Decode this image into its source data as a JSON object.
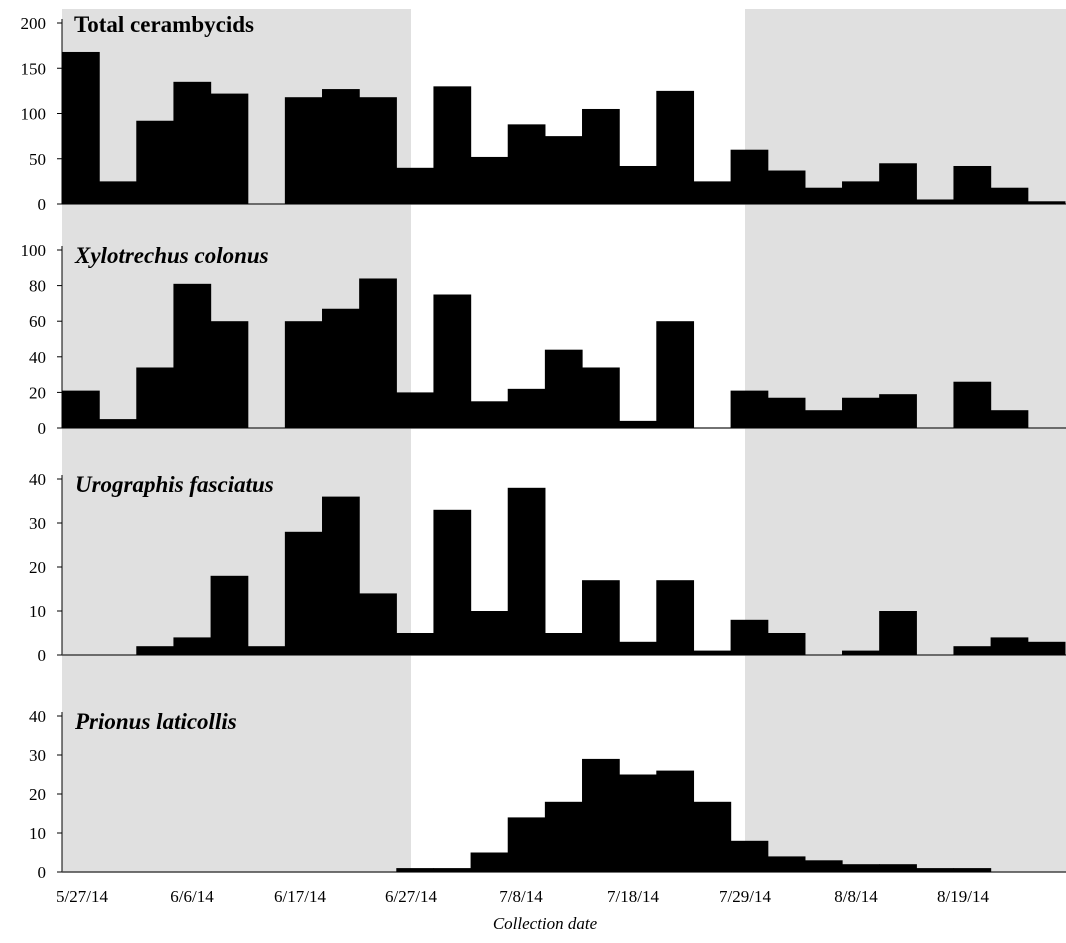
{
  "chart_data": {
    "type": "bar",
    "xlabel": "Collection date",
    "x_tick_labels": [
      "5/27/14",
      "6/6/14",
      "6/17/14",
      "6/27/14",
      "7/8/14",
      "7/18/14",
      "7/29/14",
      "8/8/14",
      "8/19/14"
    ],
    "shaded_periods": [
      [
        "5/27/14",
        "6/27/14"
      ],
      [
        "7/29/14",
        "end"
      ]
    ],
    "colors": {
      "bars": "#000000",
      "shading": "#e0e0e0"
    },
    "n_collections": 27,
    "panels": [
      {
        "title": "Total cerambycids",
        "ylim": [
          0,
          200
        ],
        "yticks": [
          0,
          50,
          100,
          150,
          200
        ],
        "values": [
          168,
          25,
          92,
          135,
          122,
          0,
          118,
          127,
          118,
          40,
          130,
          52,
          88,
          75,
          105,
          42,
          125,
          25,
          60,
          37,
          18,
          25,
          45,
          5,
          42,
          18,
          3
        ]
      },
      {
        "title": "Xylotrechus colonus",
        "ylim": [
          0,
          100
        ],
        "yticks": [
          0,
          20,
          40,
          60,
          80,
          100
        ],
        "values": [
          21,
          5,
          34,
          81,
          60,
          0,
          60,
          67,
          84,
          20,
          75,
          15,
          22,
          44,
          34,
          4,
          60,
          0,
          21,
          17,
          10,
          17,
          19,
          0,
          26,
          10,
          0
        ]
      },
      {
        "title": "Urographis fasciatus",
        "ylim": [
          0,
          40
        ],
        "yticks": [
          0,
          10,
          20,
          30,
          40
        ],
        "values": [
          0,
          0,
          2,
          4,
          18,
          2,
          28,
          36,
          14,
          5,
          33,
          10,
          38,
          5,
          17,
          3,
          17,
          1,
          8,
          5,
          0,
          1,
          10,
          0,
          2,
          4,
          3
        ]
      },
      {
        "title": "Prionus laticollis",
        "ylim": [
          0,
          40
        ],
        "yticks": [
          0,
          10,
          20,
          30,
          40
        ],
        "values": [
          0,
          0,
          0,
          0,
          0,
          0,
          0,
          0,
          0,
          1,
          1,
          5,
          14,
          18,
          29,
          25,
          26,
          18,
          8,
          4,
          3,
          2,
          2,
          1,
          1,
          0,
          0
        ]
      }
    ]
  }
}
